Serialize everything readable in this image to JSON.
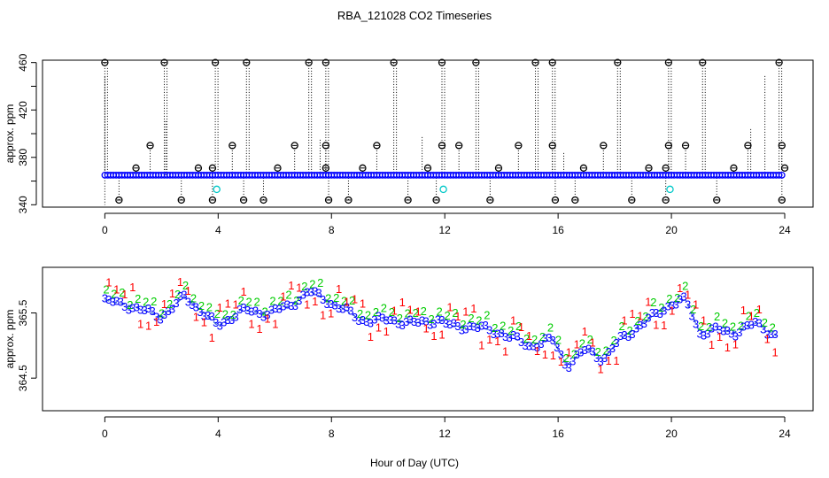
{
  "title": "RBA_121028  CO2 Timeseries",
  "xlabel": "Hour of Day (UTC)",
  "chart_data": [
    {
      "type": "scatter",
      "ylabel": "approx. ppm",
      "xlim": [
        -2.2,
        25
      ],
      "ylim": [
        338,
        462
      ],
      "xticks": [
        0,
        4,
        8,
        12,
        16,
        20,
        24
      ],
      "yticks": [
        340,
        380,
        420,
        460
      ],
      "yticks_minor": [
        360,
        400,
        440
      ],
      "grid": false,
      "baseline": 365,
      "colors": {
        "blue": "#0000ff",
        "cyan": "#00c8c8",
        "black": "#000000",
        "green": "#00cc00",
        "red": "#ff0000",
        "dashed": "#3b6bd8"
      },
      "spikes_high": [
        0.0,
        2.1,
        3.9,
        5.0,
        7.2,
        7.8,
        10.2,
        11.9,
        13.1,
        15.2,
        15.8,
        18.1,
        19.9,
        21.1,
        23.8
      ],
      "spikes_low": [
        0.5,
        2.7,
        3.8,
        4.9,
        5.6,
        7.9,
        8.6,
        10.7,
        11.7,
        13.6,
        15.9,
        16.6,
        18.6,
        19.8,
        21.6,
        23.9
      ],
      "markers_390": [
        1.6,
        4.5,
        6.7,
        7.8,
        9.6,
        11.9,
        12.5,
        14.6,
        15.8,
        17.6,
        19.9,
        20.5,
        22.7,
        23.9
      ],
      "markers_371": [
        1.1,
        3.3,
        3.8,
        6.1,
        7.8,
        9.1,
        11.4,
        13.9,
        16.9,
        19.2,
        19.8,
        22.2,
        24.0
      ],
      "cyan_points": [
        [
          3.95,
          353
        ],
        [
          11.95,
          353
        ],
        [
          19.95,
          353
        ]
      ],
      "thin_lines": [
        [
          2.15,
          412
        ],
        [
          7.6,
          396
        ],
        [
          11.2,
          398
        ],
        [
          16.2,
          384
        ],
        [
          22.8,
          404
        ],
        [
          23.3,
          450
        ]
      ]
    },
    {
      "type": "scatter",
      "ylabel": "approx. ppm",
      "xlim": [
        -2.2,
        25
      ],
      "ylim": [
        364.0,
        366.2
      ],
      "xticks": [
        0,
        4,
        8,
        12,
        16,
        20,
        24
      ],
      "yticks": [
        364.5,
        365.5
      ],
      "grid": false,
      "series": [
        {
          "name": "1",
          "color": "#ff0000"
        },
        {
          "name": "2",
          "color": "#00cc00"
        },
        {
          "name": "3",
          "color": "#0000ff"
        }
      ],
      "curve": [
        [
          0,
          365.7
        ],
        [
          1,
          365.6
        ],
        [
          2,
          365.45
        ],
        [
          2.8,
          365.75
        ],
        [
          3.5,
          365.5
        ],
        [
          4,
          365.3
        ],
        [
          4.8,
          365.55
        ],
        [
          5.5,
          365.5
        ],
        [
          6.5,
          365.6
        ],
        [
          7.2,
          365.85
        ],
        [
          7.8,
          365.7
        ],
        [
          8.5,
          365.55
        ],
        [
          9,
          365.4
        ],
        [
          10,
          365.4
        ],
        [
          11,
          365.35
        ],
        [
          11.8,
          365.4
        ],
        [
          12.2,
          365.3
        ],
        [
          13,
          365.3
        ],
        [
          14,
          365.2
        ],
        [
          15,
          365.0
        ],
        [
          15.8,
          365.1
        ],
        [
          16.3,
          364.7
        ],
        [
          17,
          364.95
        ],
        [
          17.6,
          364.8
        ],
        [
          18.2,
          365.1
        ],
        [
          19,
          365.35
        ],
        [
          20,
          365.65
        ],
        [
          20.5,
          365.7
        ],
        [
          21,
          365.2
        ],
        [
          21.6,
          365.25
        ],
        [
          22.2,
          365.2
        ],
        [
          23,
          365.35
        ],
        [
          23.7,
          365.15
        ]
      ]
    }
  ]
}
